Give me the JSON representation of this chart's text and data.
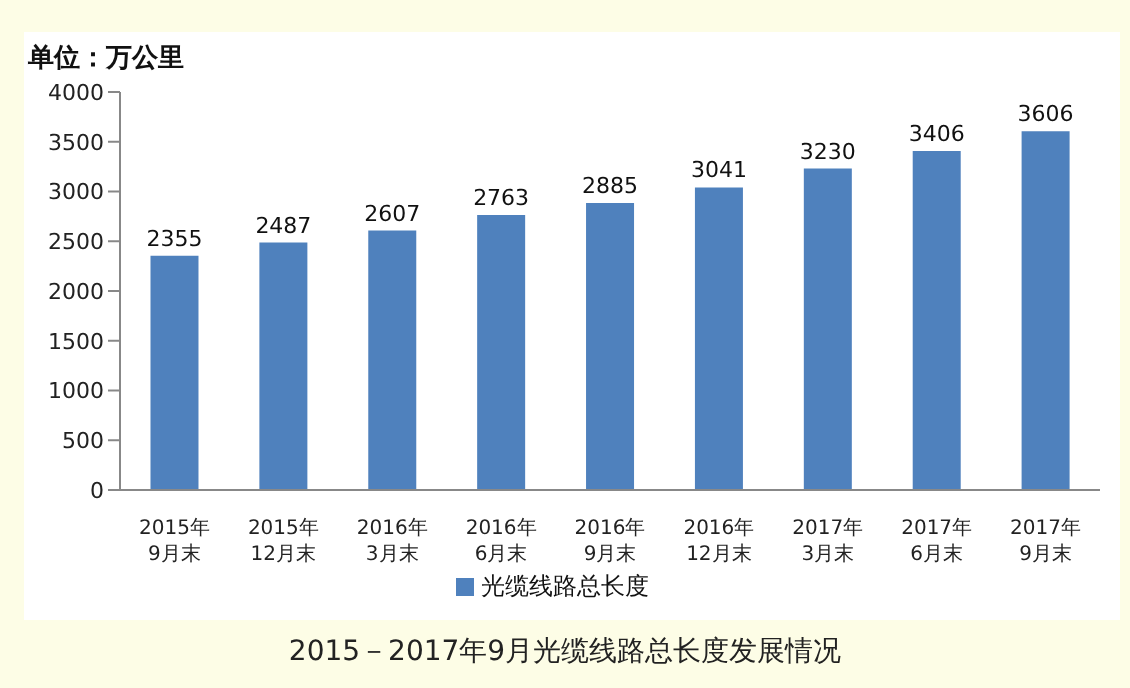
{
  "chart_data": {
    "type": "bar",
    "ylabel": "单位：万公里",
    "annotations": [
      "2015－2017年9月光缆线路总长度发展情况"
    ],
    "categories": [
      "2015年\n9月末",
      "2015年\n12月末",
      "2016年\n3月末",
      "2016年\n6月末",
      "2016年\n9月末",
      "2016年\n12月末",
      "2017年\n3月末",
      "2017年\n6月末",
      "2017年\n9月末"
    ],
    "series": [
      {
        "name": "光缆线路总长度",
        "color": "#4f81bd",
        "values": [
          2355,
          2487,
          2607,
          2763,
          2885,
          3041,
          3230,
          3406,
          3606
        ]
      }
    ],
    "ylim": [
      0,
      4000
    ],
    "yticks": [
      0,
      500,
      1000,
      1500,
      2000,
      2500,
      3000,
      3500,
      4000
    ],
    "data_labels": true,
    "grid": false,
    "legend": "bottom"
  }
}
